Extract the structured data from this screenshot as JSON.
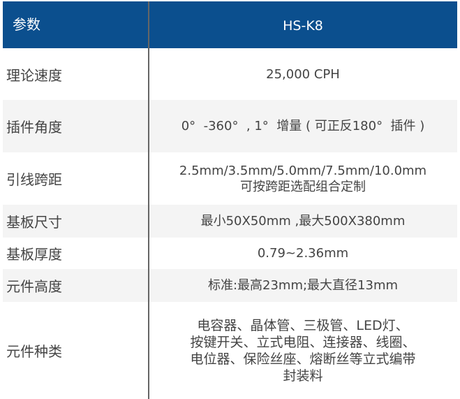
{
  "header": {
    "param_label": "参数",
    "model": "HS-K8",
    "color": "#0b4f8e"
  },
  "rows": [
    {
      "label": "理论速度",
      "lines": [
        "25,000 CPH"
      ]
    },
    {
      "label": "插件角度",
      "lines": [
        "0°  -360°  , 1°  增量 ( 可正反180°  插件 )"
      ]
    },
    {
      "label": "引线跨距",
      "lines": [
        "2.5mm/3.5mm/5.0mm/7.5mm/10.0mm",
        "可按跨距选配组合定制"
      ]
    },
    {
      "label": "基板尺寸",
      "lines": [
        "最小50X50mm ,最大500X380mm"
      ]
    },
    {
      "label": "基板厚度",
      "lines": [
        "0.79~2.36mm"
      ]
    },
    {
      "label": "元件高度",
      "lines": [
        "标准:最高23mm;最大直径13mm"
      ]
    },
    {
      "label": "元件种类",
      "lines": [
        "电容器、晶体管、三极管、LED灯、",
        "按键开关、立式电阻、连接器、线圈、",
        "电位器、保险丝座、熔断丝等立式编带",
        "封装料"
      ]
    }
  ]
}
